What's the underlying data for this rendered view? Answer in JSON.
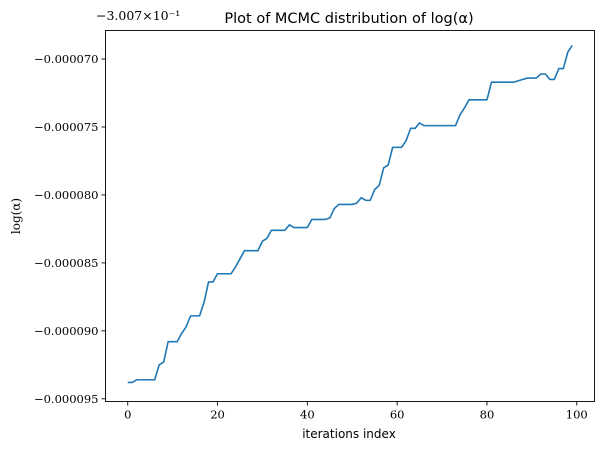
{
  "chart_data": {
    "type": "line",
    "title": "Plot of MCMC distribution of log(α)",
    "xlabel": "iterations index",
    "ylabel": "log(α)",
    "offset_label": "−3.007×10⁻¹",
    "xlim": [
      -4.95,
      103.95
    ],
    "ylim": [
      -9.52e-05,
      -6.79e-05
    ],
    "x_ticks": [
      0,
      20,
      40,
      60,
      80,
      100
    ],
    "x_tick_labels": [
      "0",
      "20",
      "40",
      "60",
      "80",
      "100"
    ],
    "y_ticks": [
      -7e-05,
      -7.5e-05,
      -8e-05,
      -8.5e-05,
      -9e-05,
      -9.5e-05
    ],
    "y_tick_labels": [
      "−0.000070",
      "−0.000075",
      "−0.000080",
      "−0.000085",
      "−0.000090",
      "−0.000095"
    ],
    "grid": false,
    "line_color": "#1f77b4",
    "series": [
      {
        "x": [
          0,
          1,
          2,
          3,
          4,
          5,
          6,
          7,
          8,
          9,
          10,
          11,
          12,
          13,
          14,
          15,
          16,
          17,
          18,
          19,
          20,
          21,
          22,
          23,
          24,
          25,
          26,
          27,
          28,
          29,
          30,
          31,
          32,
          33,
          34,
          35,
          36,
          37,
          38,
          39,
          40,
          41,
          42,
          43,
          44,
          45,
          46,
          47,
          48,
          49,
          50,
          51,
          52,
          53,
          54,
          55,
          56,
          57,
          58,
          59,
          60,
          61,
          62,
          63,
          64,
          65,
          66,
          67,
          68,
          69,
          70,
          71,
          72,
          73,
          74,
          75,
          76,
          77,
          78,
          79,
          80,
          81,
          82,
          83,
          84,
          85,
          86,
          87,
          88,
          89,
          90,
          91,
          92,
          93,
          94,
          95,
          96,
          97,
          98,
          99
        ],
        "y": [
          -9.38e-05,
          -9.38e-05,
          -9.36e-05,
          -9.36e-05,
          -9.36e-05,
          -9.36e-05,
          -9.36e-05,
          -9.25e-05,
          -9.23e-05,
          -9.08e-05,
          -9.08e-05,
          -9.08e-05,
          -9.02e-05,
          -8.97e-05,
          -8.89e-05,
          -8.89e-05,
          -8.89e-05,
          -8.79e-05,
          -8.64e-05,
          -8.64e-05,
          -8.58e-05,
          -8.58e-05,
          -8.58e-05,
          -8.58e-05,
          -8.53e-05,
          -8.47e-05,
          -8.41e-05,
          -8.41e-05,
          -8.41e-05,
          -8.41e-05,
          -8.34e-05,
          -8.32e-05,
          -8.26e-05,
          -8.26e-05,
          -8.26e-05,
          -8.26e-05,
          -8.22e-05,
          -8.24e-05,
          -8.24e-05,
          -8.24e-05,
          -8.24e-05,
          -8.18e-05,
          -8.18e-05,
          -8.18e-05,
          -8.18e-05,
          -8.17e-05,
          -8.1e-05,
          -8.07e-05,
          -8.07e-05,
          -8.07e-05,
          -8.07e-05,
          -8.06e-05,
          -8.02e-05,
          -8.04e-05,
          -8.04e-05,
          -7.96e-05,
          -7.93e-05,
          -7.8e-05,
          -7.78e-05,
          -7.65e-05,
          -7.65e-05,
          -7.65e-05,
          -7.6e-05,
          -7.51e-05,
          -7.51e-05,
          -7.47e-05,
          -7.49e-05,
          -7.49e-05,
          -7.49e-05,
          -7.49e-05,
          -7.49e-05,
          -7.49e-05,
          -7.49e-05,
          -7.49e-05,
          -7.41e-05,
          -7.36e-05,
          -7.3e-05,
          -7.3e-05,
          -7.3e-05,
          -7.3e-05,
          -7.3e-05,
          -7.17e-05,
          -7.17e-05,
          -7.17e-05,
          -7.17e-05,
          -7.17e-05,
          -7.17e-05,
          -7.16e-05,
          -7.15e-05,
          -7.14e-05,
          -7.14e-05,
          -7.14e-05,
          -7.11e-05,
          -7.11e-05,
          -7.15e-05,
          -7.15e-05,
          -7.07e-05,
          -7.07e-05,
          -6.95e-05,
          -6.9e-05
        ]
      }
    ]
  }
}
